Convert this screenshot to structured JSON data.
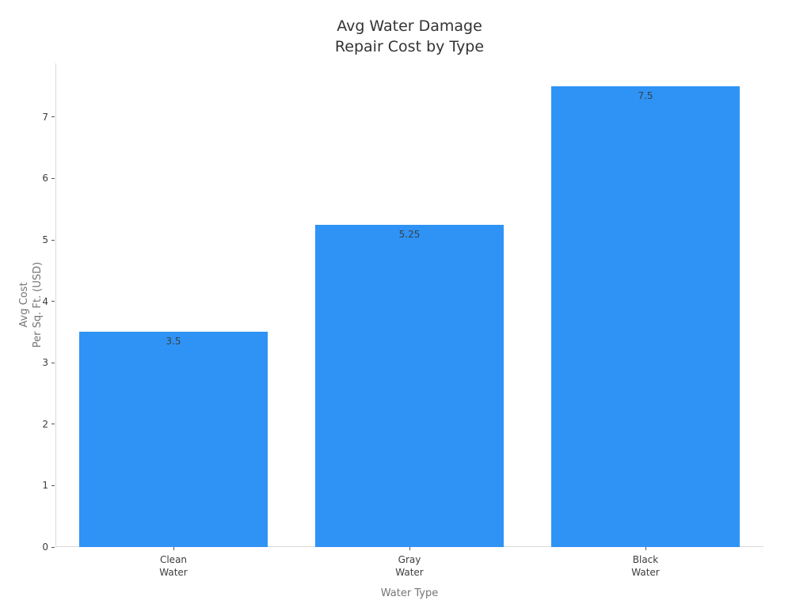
{
  "chart_data": {
    "type": "bar",
    "title": "Avg Water Damage\nRepair Cost by Type",
    "xlabel": "Water Type",
    "ylabel": "Avg Cost\nPer Sq. Ft. (USD)",
    "categories": [
      "Clean\nWater",
      "Gray\nWater",
      "Black\nWater"
    ],
    "values": [
      3.5,
      5.25,
      7.5
    ],
    "value_labels": [
      "3.5",
      "5.25",
      "7.5"
    ],
    "yticks": [
      0,
      1,
      2,
      3,
      4,
      5,
      6,
      7
    ],
    "ylim": [
      0,
      7.875
    ],
    "grid": false,
    "legend": "none",
    "bar_width_fraction": 0.8,
    "colors": {
      "bar": "#2F93F5",
      "title": "#333333",
      "tick_label": "#3d3d3d",
      "axis_label": "#757575",
      "value_label": "#3a4147",
      "spine": "#d9d9d9",
      "tick_mark": "#555555"
    }
  }
}
